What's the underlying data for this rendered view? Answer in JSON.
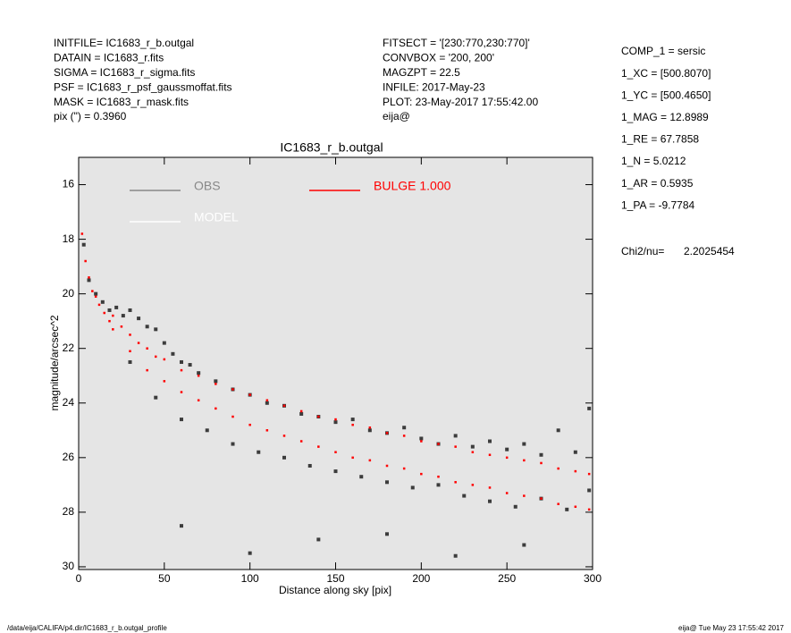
{
  "info": {
    "left": [
      "INITFILE= IC1683_r_b.outgal",
      "DATAIN  = IC1683_r.fits",
      "SIGMA   = IC1683_r_sigma.fits",
      "PSF     = IC1683_r_psf_gaussmoffat.fits",
      "MASK    = IC1683_r_mask.fits",
      "pix (\") =  0.3960"
    ],
    "middle": [
      "FITSECT = '[230:770,230:770]'",
      "CONVBOX = '200, 200'",
      "MAGZPT  =             22.5",
      "INFILE: 2017-May-23",
      "PLOT: 23-May-2017 17:55:42.00",
      "eija@"
    ],
    "right": [
      "COMP_1  = sersic",
      "1_XC    = [500.8070]",
      "1_YC    = [500.4650]",
      "1_MAG   = 12.8989",
      "1_RE    = 67.7858",
      "1_N     = 5.0212",
      "1_AR    = 0.5935",
      "1_PA    = -9.7784"
    ],
    "chi": [
      "Chi2/nu=",
      "2.2025454"
    ]
  },
  "footer": {
    "left": "/data/eija/CALIFA/p4.dir/IC1683_r_b.outgal_profile",
    "right": "eija@  Tue May 23 17:55:42 2017"
  },
  "chart_data": {
    "type": "scatter",
    "title": "IC1683_r_b.outgal",
    "x_label": "Distance along sky [pix]",
    "y_label": "magnitude/arcsec^2",
    "xlim": [
      0,
      300
    ],
    "xticks": [
      0,
      50,
      100,
      150,
      200,
      250,
      300
    ],
    "ylim": [
      15,
      30.1
    ],
    "yticks": [
      16,
      18,
      20,
      22,
      24,
      26,
      28,
      30
    ],
    "y_inverted": true,
    "legend": "upper left",
    "series": [
      {
        "name": "OBS",
        "color": "#3c3c3c",
        "legend_color": "#888888",
        "x": [
          3,
          6,
          10,
          14,
          18,
          22,
          26,
          30,
          35,
          40,
          45,
          50,
          55,
          60,
          65,
          70,
          80,
          90,
          100,
          110,
          120,
          130,
          140,
          150,
          160,
          170,
          180,
          190,
          200,
          210,
          220,
          230,
          240,
          250,
          260,
          270,
          280,
          290,
          298,
          30,
          45,
          60,
          75,
          90,
          105,
          120,
          135,
          150,
          165,
          180,
          195,
          210,
          225,
          240,
          255,
          270,
          285,
          298,
          60,
          100,
          140,
          180,
          220,
          260
        ],
        "values": [
          18.2,
          19.5,
          20.0,
          20.3,
          20.6,
          20.5,
          20.8,
          20.6,
          20.9,
          21.2,
          21.3,
          21.8,
          22.2,
          22.5,
          22.6,
          22.9,
          23.2,
          23.5,
          23.7,
          24.0,
          24.1,
          24.4,
          24.5,
          24.7,
          24.6,
          25.0,
          25.1,
          24.9,
          25.3,
          25.5,
          25.2,
          25.6,
          25.4,
          25.7,
          25.5,
          25.9,
          25.0,
          25.8,
          24.2,
          22.5,
          23.8,
          24.6,
          25.0,
          25.5,
          25.8,
          26.0,
          26.3,
          26.5,
          26.7,
          26.9,
          27.1,
          27.0,
          27.4,
          27.6,
          27.8,
          27.5,
          27.9,
          27.2,
          28.5,
          29.5,
          29.0,
          28.8,
          29.6,
          29.2
        ]
      },
      {
        "name": "MODEL",
        "color": "#ffffff",
        "legend_color": "#ffffff",
        "x": [],
        "values": []
      },
      {
        "name": "BULGE  1.000",
        "color": "#ff0000",
        "legend_color": "#ff0000",
        "x": [
          2,
          4,
          6,
          8,
          10,
          12,
          15,
          18,
          20,
          25,
          30,
          35,
          40,
          45,
          50,
          60,
          70,
          80,
          90,
          100,
          110,
          120,
          130,
          140,
          150,
          160,
          170,
          180,
          190,
          200,
          210,
          220,
          230,
          240,
          250,
          260,
          270,
          280,
          290,
          298,
          20,
          30,
          40,
          50,
          60,
          70,
          80,
          90,
          100,
          110,
          120,
          130,
          140,
          150,
          160,
          170,
          180,
          190,
          200,
          210,
          220,
          230,
          240,
          250,
          260,
          270,
          280,
          290,
          298
        ],
        "values": [
          17.8,
          18.8,
          19.4,
          19.9,
          20.1,
          20.4,
          20.7,
          21.0,
          20.8,
          21.2,
          21.5,
          21.8,
          22.0,
          22.3,
          22.4,
          22.8,
          23.0,
          23.3,
          23.5,
          23.7,
          23.9,
          24.1,
          24.3,
          24.5,
          24.6,
          24.8,
          24.9,
          25.1,
          25.2,
          25.4,
          25.5,
          25.6,
          25.8,
          25.9,
          26.0,
          26.1,
          26.2,
          26.4,
          26.5,
          26.6,
          21.3,
          22.1,
          22.8,
          23.2,
          23.6,
          23.9,
          24.2,
          24.5,
          24.8,
          25.0,
          25.2,
          25.4,
          25.6,
          25.8,
          26.0,
          26.1,
          26.3,
          26.4,
          26.6,
          26.7,
          26.9,
          27.0,
          27.1,
          27.3,
          27.4,
          27.5,
          27.7,
          27.8,
          27.9
        ]
      }
    ]
  }
}
